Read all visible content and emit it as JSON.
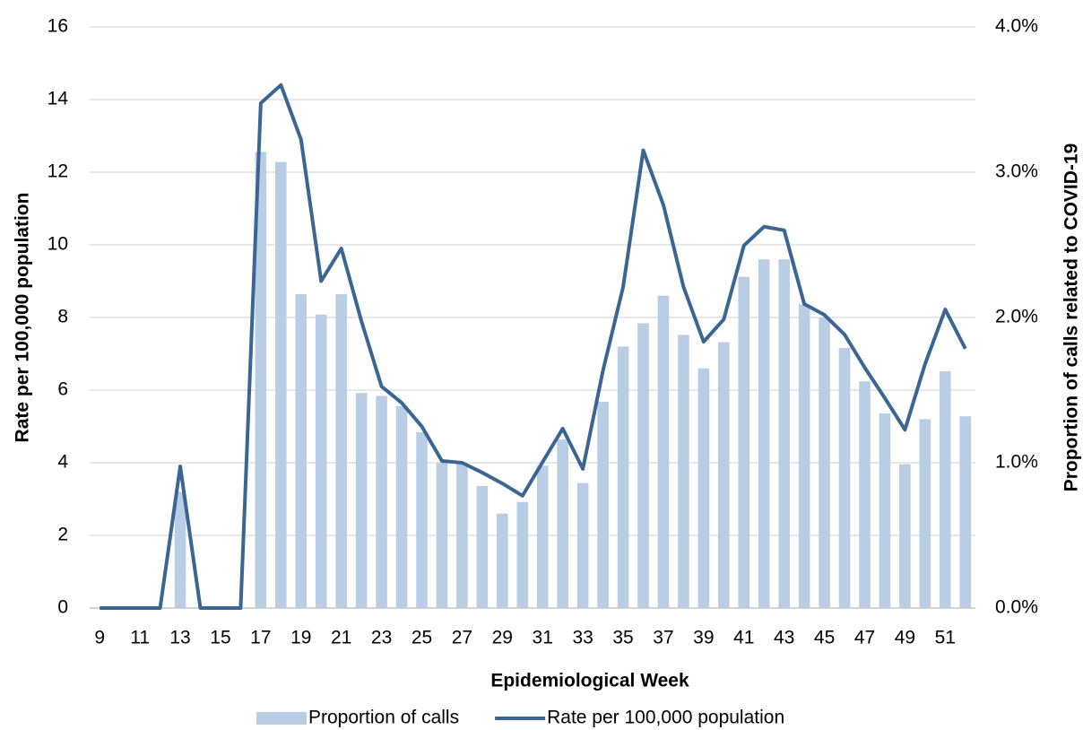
{
  "chart_data": {
    "type": "bar",
    "x_label": "Epidemiological Week",
    "y_label": "Rate per 100,000 population",
    "y2_label": "Proportion of calls related to COVID-19",
    "categories": [
      "9",
      null,
      "11",
      null,
      "13",
      null,
      "15",
      null,
      "17",
      null,
      "19",
      null,
      "21",
      null,
      "23",
      null,
      "25",
      null,
      "27",
      null,
      "29",
      null,
      "31",
      null,
      "33",
      null,
      "35",
      null,
      "37",
      null,
      "39",
      null,
      "41",
      null,
      "43",
      null,
      "45",
      null,
      "47",
      null,
      "49",
      null,
      "51",
      null
    ],
    "series": [
      {
        "name": "Proportion of calls",
        "type": "bar",
        "axis": "y2",
        "color": "#b9cde5",
        "values": [
          0,
          0,
          0,
          0,
          0.8,
          0,
          0,
          0,
          3.14,
          3.07,
          2.16,
          2.02,
          2.16,
          1.48,
          1.46,
          1.39,
          1.21,
          1.0,
          0.99,
          0.84,
          0.65,
          0.73,
          0.98,
          1.16,
          0.86,
          1.42,
          1.8,
          1.96,
          2.15,
          1.88,
          1.65,
          1.83,
          2.28,
          2.4,
          2.4,
          2.09,
          2.0,
          1.79,
          1.56,
          1.34,
          0.99,
          1.3,
          1.63,
          1.32
        ]
      },
      {
        "name": "Rate per 100,000 population",
        "type": "line",
        "color": "#3b6593",
        "values": [
          0,
          0,
          0,
          0,
          3.9,
          0,
          0,
          0,
          13.9,
          14.4,
          12.9,
          9.0,
          9.9,
          7.9,
          6.1,
          5.65,
          5.0,
          4.05,
          4.0,
          3.73,
          3.43,
          3.09,
          4.02,
          4.94,
          3.83,
          6.54,
          8.84,
          12.6,
          11.1,
          8.84,
          7.33,
          7.95,
          9.98,
          10.5,
          10.4,
          8.37,
          8.07,
          7.53,
          6.62,
          5.78,
          4.91,
          6.72,
          8.22,
          7.14
        ]
      }
    ],
    "ylim": [
      0,
      16
    ],
    "yticks": [
      0,
      2,
      4,
      6,
      8,
      10,
      12,
      14,
      16
    ],
    "y2lim": [
      0,
      4
    ],
    "y2ticks": [
      {
        "value": 0,
        "label": "0.0%"
      },
      {
        "value": 1,
        "label": "1.0%"
      },
      {
        "value": 2,
        "label": "2.0%"
      },
      {
        "value": 3,
        "label": "3.0%"
      },
      {
        "value": 4,
        "label": "4.0%"
      }
    ],
    "grid": true,
    "legend": "bottom"
  }
}
